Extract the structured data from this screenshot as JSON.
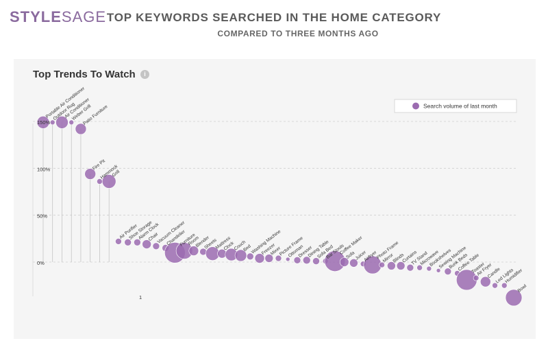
{
  "brand": {
    "part1": "STYLE",
    "part2": "SAGE"
  },
  "title": "TOP KEYWORDS SEARCHED IN THE HOME CATEGORY",
  "subtitle": "COMPARED TO THREE MONTHS AGO",
  "panel_title": "Top Trends To Watch",
  "info_icon": "info-icon",
  "chart_data": {
    "type": "scatter",
    "title": "Top Trends To Watch",
    "xlabel": "",
    "ylabel": "",
    "y_ticks": [
      "150%",
      "100%",
      "50%",
      "0%"
    ],
    "x_tick": "1",
    "ylim": [
      -35,
      155
    ],
    "grid": true,
    "legend_position": "top-right",
    "legend": "Search volume of last month",
    "color": "#9b6bb0",
    "series": [
      {
        "points": [
          {
            "label": "Portable Air Conditioner",
            "y": 149,
            "size": 9
          },
          {
            "label": "Outdoor Rug",
            "y": 149,
            "size": 3.5
          },
          {
            "label": "Air Conditioner",
            "y": 149,
            "size": 9
          },
          {
            "label": "Weber Grill",
            "y": 149,
            "size": 3.5
          },
          {
            "label": "Patio Furniture",
            "y": 142,
            "size": 8
          },
          {
            "label": "Fire Pit",
            "y": 94,
            "size": 8
          },
          {
            "label": "Hammock",
            "y": 86,
            "size": 4
          },
          {
            "label": "Grill",
            "y": 86,
            "size": 10
          },
          {
            "label": "Air Purifier",
            "y": 22,
            "size": 4.5
          },
          {
            "label": "Shoe Storage",
            "y": 21,
            "size": 5
          },
          {
            "label": "Alarm Clock",
            "y": 21,
            "size": 5
          },
          {
            "label": "Chair",
            "y": 19,
            "size": 6.5
          },
          {
            "label": "Vacuum Cleaner",
            "y": 17,
            "size": 5
          },
          {
            "label": "Chandelier",
            "y": 15,
            "size": 5
          },
          {
            "label": "Furniture",
            "y": 10,
            "size": 15
          },
          {
            "label": "Room",
            "y": 12,
            "size": 12
          },
          {
            "label": "Blender",
            "y": 12,
            "size": 7
          },
          {
            "label": "Sheets",
            "y": 11,
            "size": 5
          },
          {
            "label": "Mattress",
            "y": 9,
            "size": 10
          },
          {
            "label": "Clock",
            "y": 9,
            "size": 6.5
          },
          {
            "label": "Couch",
            "y": 8,
            "size": 9
          },
          {
            "label": "Bed",
            "y": 7,
            "size": 8.5
          },
          {
            "label": "Washing Machine",
            "y": 6,
            "size": 5
          },
          {
            "label": "Freezer",
            "y": 4,
            "size": 7
          },
          {
            "label": "Mixer",
            "y": 4,
            "size": 6
          },
          {
            "label": "Picture Frame",
            "y": 4,
            "size": 4.5
          },
          {
            "label": "Ottoman",
            "y": 3,
            "size": 3
          },
          {
            "label": "Dresser",
            "y": 2,
            "size": 5
          },
          {
            "label": "Dining Table",
            "y": 2,
            "size": 5.5
          },
          {
            "label": "Sofa Bed",
            "y": 1,
            "size": 5
          },
          {
            "label": "Bar Stools",
            "y": 1,
            "size": 4
          },
          {
            "label": "Coffee Maker",
            "y": 1,
            "size": 15
          },
          {
            "label": "Sofa",
            "y": 0,
            "size": 6.5
          },
          {
            "label": "Juicer",
            "y": -1,
            "size": 6
          },
          {
            "label": "Airfryer",
            "y": -2,
            "size": 4
          },
          {
            "label": "Photo Frame",
            "y": -3,
            "size": 13
          },
          {
            "label": "Mirror",
            "y": -3,
            "size": 4
          },
          {
            "label": "Blinds",
            "y": -4,
            "size": 6
          },
          {
            "label": "Curtains",
            "y": -4,
            "size": 6
          },
          {
            "label": "TV Stand",
            "y": -6,
            "size": 5
          },
          {
            "label": "Microwave",
            "y": -6,
            "size": 4
          },
          {
            "label": "Bookshelves",
            "y": -7,
            "size": 3.5
          },
          {
            "label": "Sewing Machine",
            "y": -9,
            "size": 3
          },
          {
            "label": "Bunk Beds",
            "y": -10,
            "size": 5
          },
          {
            "label": "Coffee Table",
            "y": -12,
            "size": 4
          },
          {
            "label": "Toaster",
            "y": -19,
            "size": 15
          },
          {
            "label": "Air Fryer",
            "y": -17,
            "size": 4
          },
          {
            "label": "Candle",
            "y": -21,
            "size": 7.5
          },
          {
            "label": "Led Lights",
            "y": -25,
            "size": 4
          },
          {
            "label": "Humidifier",
            "y": -25,
            "size": 4
          },
          {
            "label": "Bowl",
            "y": -38,
            "size": 12
          }
        ]
      }
    ]
  }
}
